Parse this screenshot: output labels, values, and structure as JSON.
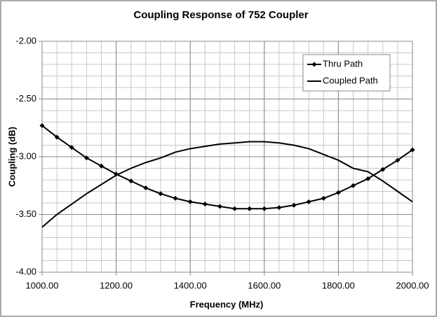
{
  "chart_data": {
    "type": "line",
    "title": "Coupling Response of 752 Coupler",
    "x_label": "Frequency (MHz)",
    "y_label": "Coupling (dB)",
    "x": [
      1000,
      1040,
      1080,
      1120,
      1160,
      1200,
      1240,
      1280,
      1320,
      1360,
      1400,
      1440,
      1480,
      1520,
      1560,
      1600,
      1640,
      1680,
      1720,
      1760,
      1800,
      1840,
      1880,
      1920,
      1960,
      2000
    ],
    "series": [
      {
        "name": "Thru Path",
        "color": "#000000",
        "marker": "diamond",
        "values": [
          -2.73,
          -2.83,
          -2.92,
          -3.01,
          -3.08,
          -3.15,
          -3.21,
          -3.27,
          -3.32,
          -3.36,
          -3.39,
          -3.41,
          -3.43,
          -3.45,
          -3.45,
          -3.45,
          -3.44,
          -3.42,
          -3.39,
          -3.36,
          -3.31,
          -3.25,
          -3.19,
          -3.11,
          -3.03,
          -2.94
        ]
      },
      {
        "name": "Coupled Path",
        "color": "#000000",
        "values": [
          -3.61,
          -3.5,
          -3.41,
          -3.32,
          -3.24,
          -3.16,
          -3.1,
          -3.05,
          -3.01,
          -2.96,
          -2.93,
          -2.91,
          -2.89,
          -2.88,
          -2.87,
          -2.87,
          -2.88,
          -2.9,
          -2.93,
          -2.98,
          -3.03,
          -3.1,
          -3.13,
          -3.21,
          -3.3,
          -3.39
        ]
      }
    ],
    "xlim": [
      1000,
      2000
    ],
    "ylim": [
      -4,
      -2
    ],
    "xticks": [
      {
        "value": 1000,
        "label": "1000.00"
      },
      {
        "value": 1200,
        "label": "1200.00"
      },
      {
        "value": 1400,
        "label": "1400.00"
      },
      {
        "value": 1600,
        "label": "1600.00"
      },
      {
        "value": 1800,
        "label": "1800.00"
      },
      {
        "value": 2000,
        "label": "2000.00"
      }
    ],
    "yticks": [
      {
        "value": -4,
        "label": "-4.00"
      },
      {
        "value": -3.5,
        "label": "-3.50"
      },
      {
        "value": -3,
        "label": "-3.00"
      },
      {
        "value": -2.5,
        "label": "-2.50"
      },
      {
        "value": -2,
        "label": "-2.00"
      }
    ],
    "grid": true,
    "minor_grid_x_step": 40,
    "minor_grid_y_step": 0.1,
    "legend": "upper right"
  }
}
